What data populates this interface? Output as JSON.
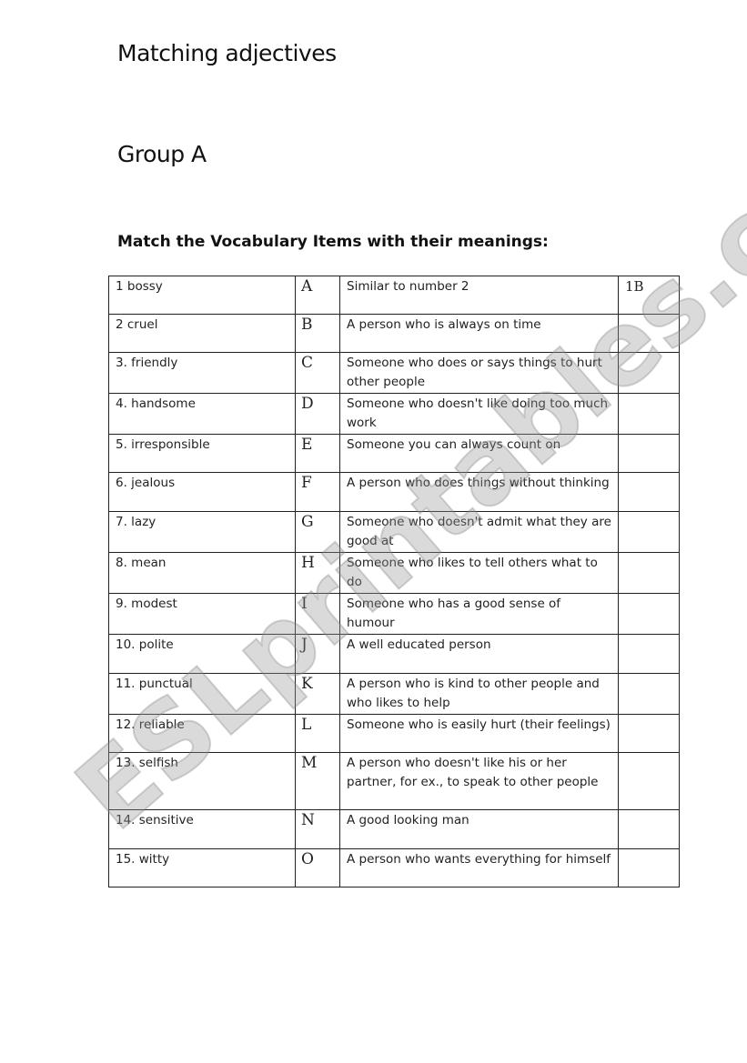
{
  "title": "Matching adjectives",
  "group": "Group A",
  "instruction": "Match the Vocabulary Items with their meanings:",
  "watermark": "ESLprintables.com",
  "rows": [
    {
      "word": "1  bossy",
      "letter": "A",
      "meaning": "Similar to number 2",
      "answer": "1B"
    },
    {
      "word": "2  cruel",
      "letter": "B",
      "meaning": "A person who is always on time",
      "answer": ""
    },
    {
      "word": "3.  friendly",
      "letter": "C",
      "meaning": "Someone who does or says things to hurt other people",
      "answer": ""
    },
    {
      "word": "4.  handsome",
      "letter": "D",
      "meaning": "Someone who doesn't like doing too much work",
      "answer": ""
    },
    {
      "word": "5.  irresponsible",
      "letter": "E",
      "meaning": "Someone you can always count on",
      "answer": ""
    },
    {
      "word": "6.  jealous",
      "letter": "F",
      "meaning": "A person who does things without thinking",
      "answer": ""
    },
    {
      "word": "7.  lazy",
      "letter": "G",
      "meaning": "Someone who doesn't admit what they are good at",
      "answer": ""
    },
    {
      "word": "8.  mean",
      "letter": "H",
      "meaning": "Someone who likes to tell others what to do",
      "answer": ""
    },
    {
      "word": "9.  modest",
      "letter": "I",
      "meaning": "Someone who has a good sense of humour",
      "answer": ""
    },
    {
      "word": "10. polite",
      "letter": "J",
      "meaning": "A well educated person",
      "answer": ""
    },
    {
      "word": "11. punctual",
      "letter": "K",
      "meaning": "A person who is kind to other people and who likes to help",
      "answer": ""
    },
    {
      "word": "12. reliable",
      "letter": "L",
      "meaning": "Someone who is easily hurt (their feelings)",
      "answer": ""
    },
    {
      "word": "13. selfish",
      "letter": "M",
      "meaning": "A person who doesn't like his or her partner, for ex., to speak to other people",
      "answer": ""
    },
    {
      "word": "14. sensitive",
      "letter": "N",
      "meaning": "A good looking man",
      "answer": ""
    },
    {
      "word": "15. witty",
      "letter": "O",
      "meaning": "A person who wants everything for himself",
      "answer": ""
    }
  ]
}
